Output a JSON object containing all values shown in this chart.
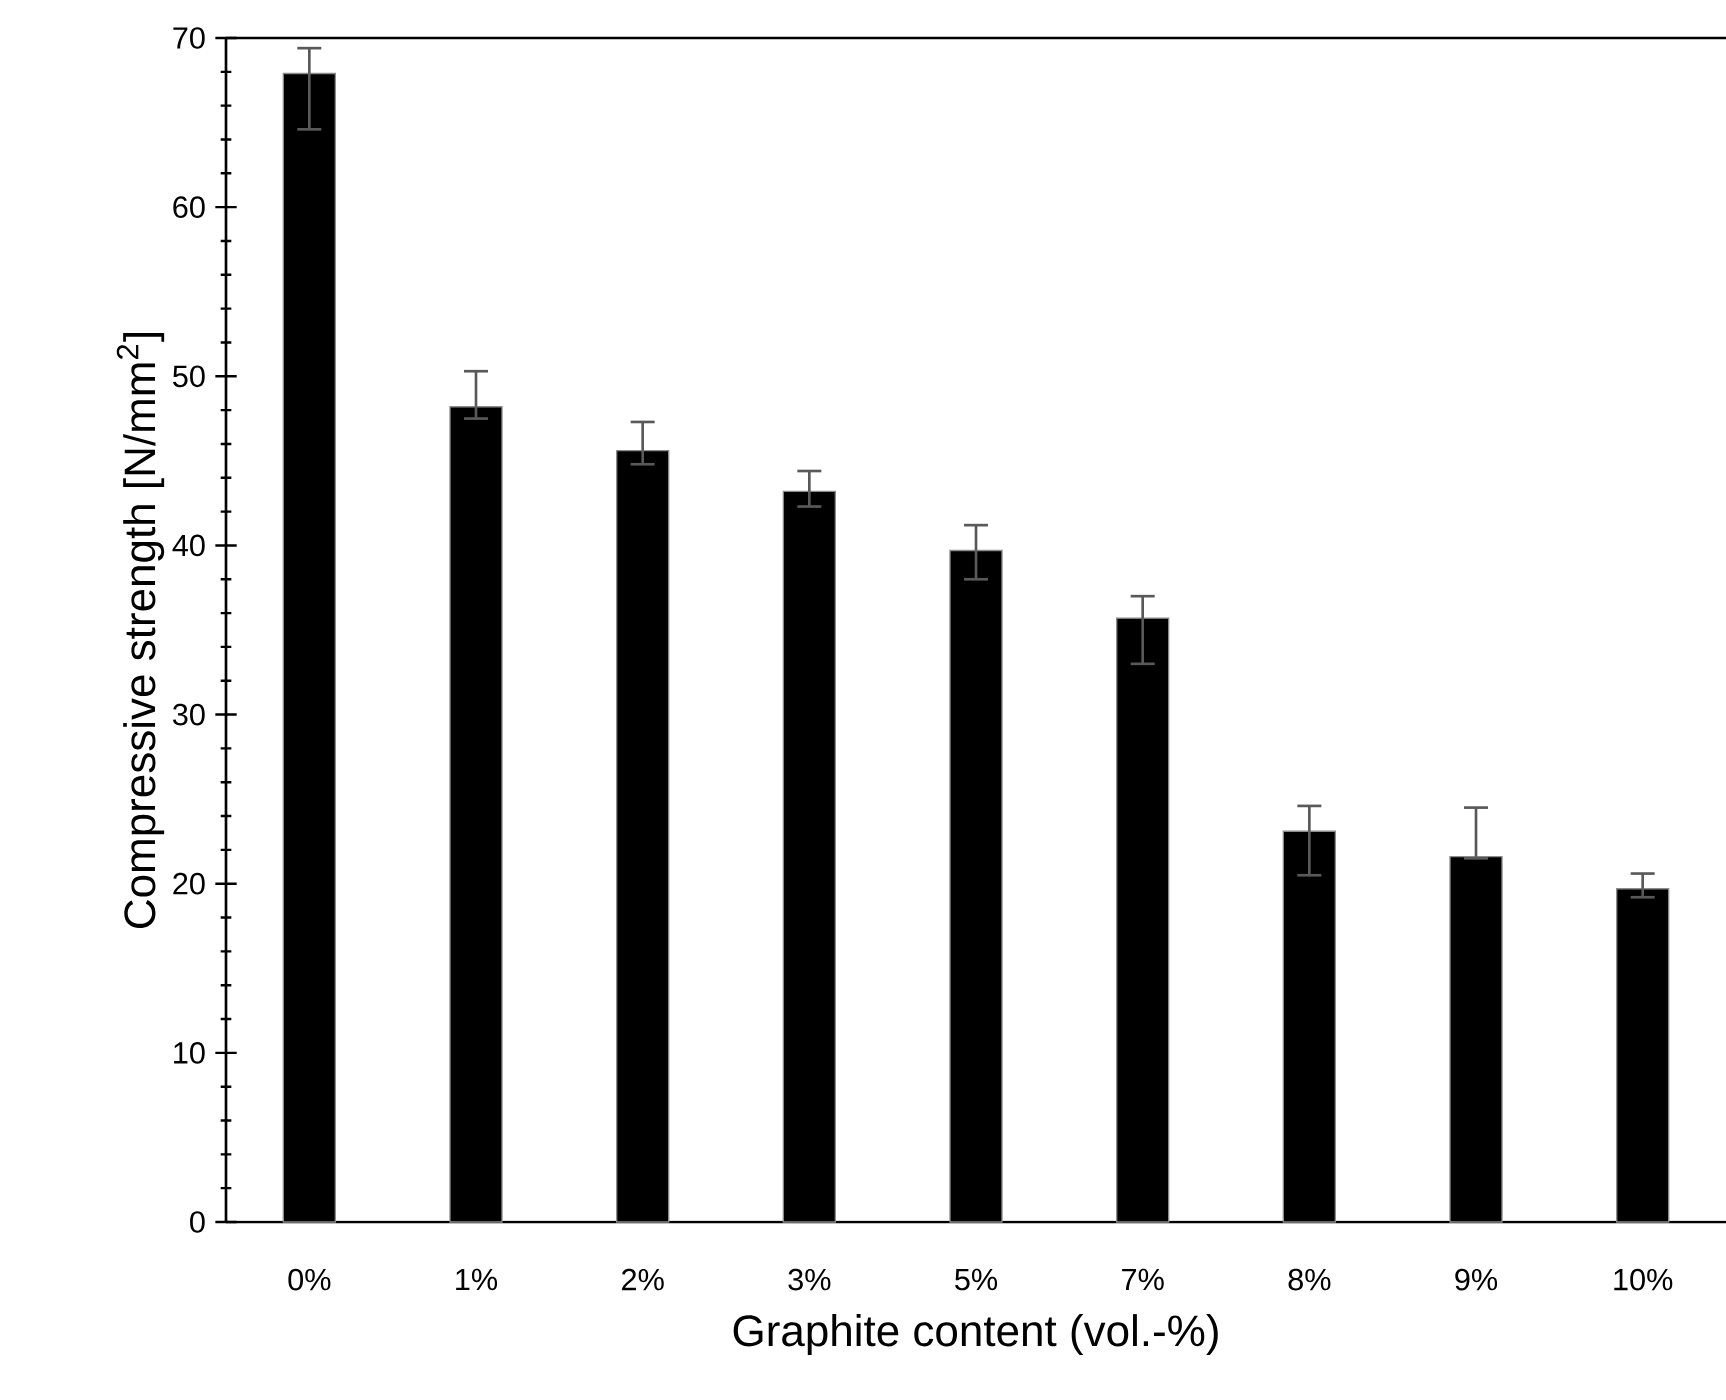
{
  "chart_data": {
    "type": "bar",
    "xlabel": "Graphite content (vol.-%)",
    "ylabel": "Compressive strength [N/mm$^{2}$]",
    "categories": [
      "0%",
      "1%",
      "2%",
      "3%",
      "5%",
      "7%",
      "8%",
      "9%",
      "10%"
    ],
    "values": [
      67.9,
      48.2,
      45.6,
      43.2,
      39.7,
      35.7,
      23.1,
      21.6,
      19.7
    ],
    "errors": [
      [
        64.6,
        69.4
      ],
      [
        47.5,
        50.3
      ],
      [
        44.8,
        47.3
      ],
      [
        42.3,
        44.4
      ],
      [
        38.0,
        41.2
      ],
      [
        33.0,
        37.0
      ],
      [
        20.5,
        24.6
      ],
      [
        21.5,
        24.5
      ],
      [
        19.2,
        20.6
      ]
    ],
    "color": "#000000",
    "ylim": [
      0,
      70
    ],
    "yticks": [
      0,
      10,
      20,
      30,
      40,
      50,
      60,
      70
    ],
    "grid": false
  }
}
